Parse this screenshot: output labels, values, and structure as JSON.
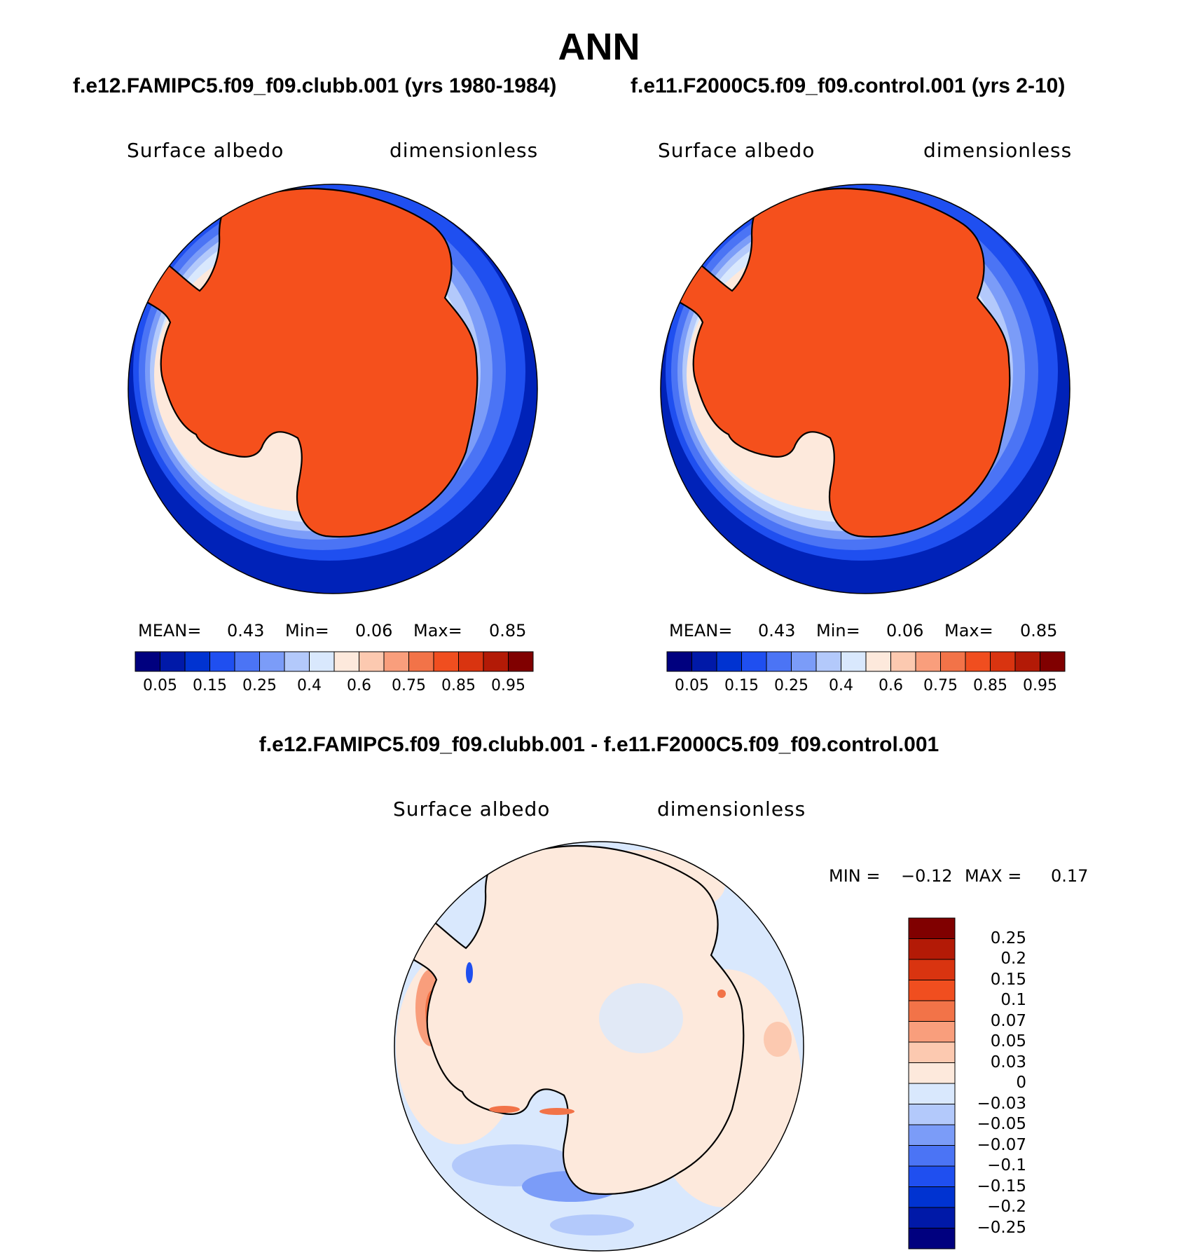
{
  "title": "ANN",
  "panels": [
    {
      "case_title": "f.e12.FAMIPC5.f09_f09.clubb.001 (yrs 1980-1984)",
      "variable": "Surface albedo",
      "units": "dimensionless",
      "stats": {
        "mean_label": "MEAN=",
        "mean": "0.43",
        "min_label": "Min=",
        "min": "0.06",
        "max_label": "Max=",
        "max": "0.85"
      }
    },
    {
      "case_title": "f.e11.F2000C5.f09_f09.control.001 (yrs 2-10)",
      "variable": "Surface albedo",
      "units": "dimensionless",
      "stats": {
        "mean_label": "MEAN=",
        "mean": "0.43",
        "min_label": "Min=",
        "min": "0.06",
        "max_label": "Max=",
        "max": "0.85"
      }
    },
    {
      "case_title": "f.e12.FAMIPC5.f09_f09.clubb.001 - f.e11.F2000C5.f09_f09.control.001",
      "variable": "Surface albedo",
      "units": "dimensionless",
      "stats": {
        "min_label": "MIN =",
        "min": "−0.12",
        "max_label": "MAX =",
        "max": "0.17"
      }
    }
  ],
  "colorbar_main": {
    "colors": [
      "#00007f",
      "#0019a8",
      "#0033d1",
      "#1f4ff0",
      "#4b74f5",
      "#7b9cf8",
      "#b3c9fb",
      "#d9e8fd",
      "#fde9dc",
      "#fcc9b0",
      "#f99e7c",
      "#f27348",
      "#f04e1f",
      "#d93410",
      "#b31a06",
      "#800000"
    ],
    "labels": [
      "0.05",
      "0.15",
      "0.25",
      "0.4",
      "0.6",
      "0.75",
      "0.85",
      "0.95"
    ]
  },
  "colorbar_diff": {
    "colors": [
      "#800000",
      "#b31a06",
      "#d93410",
      "#f04e1f",
      "#f27348",
      "#f99e7c",
      "#fcc9b0",
      "#fde9dc",
      "#d9e8fd",
      "#b3c9fb",
      "#7b9cf8",
      "#4b74f5",
      "#1f4ff0",
      "#0033d1",
      "#0019a8",
      "#00007f"
    ],
    "labels": [
      "0.25",
      "0.2",
      "0.15",
      "0.1",
      "0.07",
      "0.05",
      "0.03",
      "0",
      "−0.03",
      "−0.05",
      "−0.07",
      "−0.1",
      "−0.15",
      "−0.2",
      "−0.25"
    ]
  },
  "map_colors": {
    "ocean_far": "#0022b8",
    "land": "#f5501c",
    "diff_background": "#d9e8fd"
  }
}
